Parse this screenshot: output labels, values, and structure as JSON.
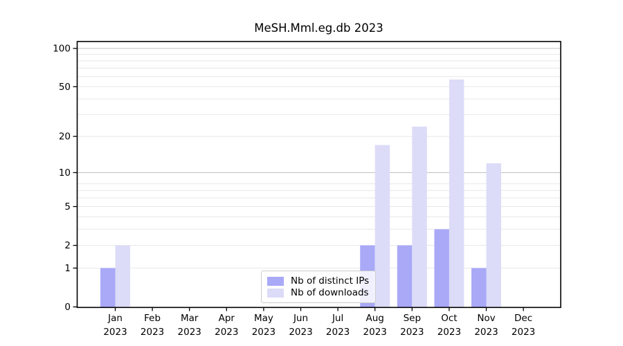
{
  "figure": {
    "background": "#ffffff"
  },
  "chart_data": {
    "type": "bar",
    "title": "MeSH.Mml.eg.db 2023",
    "categories": [
      "Jan 2023",
      "Feb 2023",
      "Mar 2023",
      "Apr 2023",
      "May 2023",
      "Jun 2023",
      "Jul 2023",
      "Aug 2023",
      "Sep 2023",
      "Oct 2023",
      "Nov 2023",
      "Dec 2023"
    ],
    "series": [
      {
        "name": "Nb of distinct IPs",
        "color": "#a9a9f8",
        "values": [
          1,
          0,
          0,
          0,
          0,
          0,
          0,
          2,
          2,
          3,
          1,
          0
        ]
      },
      {
        "name": "Nb of downloads",
        "color": "#dcdcf8",
        "values": [
          2,
          0,
          0,
          0,
          0,
          0,
          0,
          17,
          24,
          57,
          12,
          0
        ]
      }
    ],
    "xlabel": "",
    "ylabel": "",
    "y_ticks": [
      0,
      1,
      2,
      5,
      10,
      20,
      50,
      100
    ],
    "y_scale": "log1p",
    "ylim": [
      0,
      113
    ],
    "grid": true,
    "legend_position": "lower center",
    "colors": {
      "grid_minor": "#e7e7e7",
      "grid_major": "#c0c0c0",
      "axis": "#000000",
      "tick_text": "#000000"
    }
  }
}
